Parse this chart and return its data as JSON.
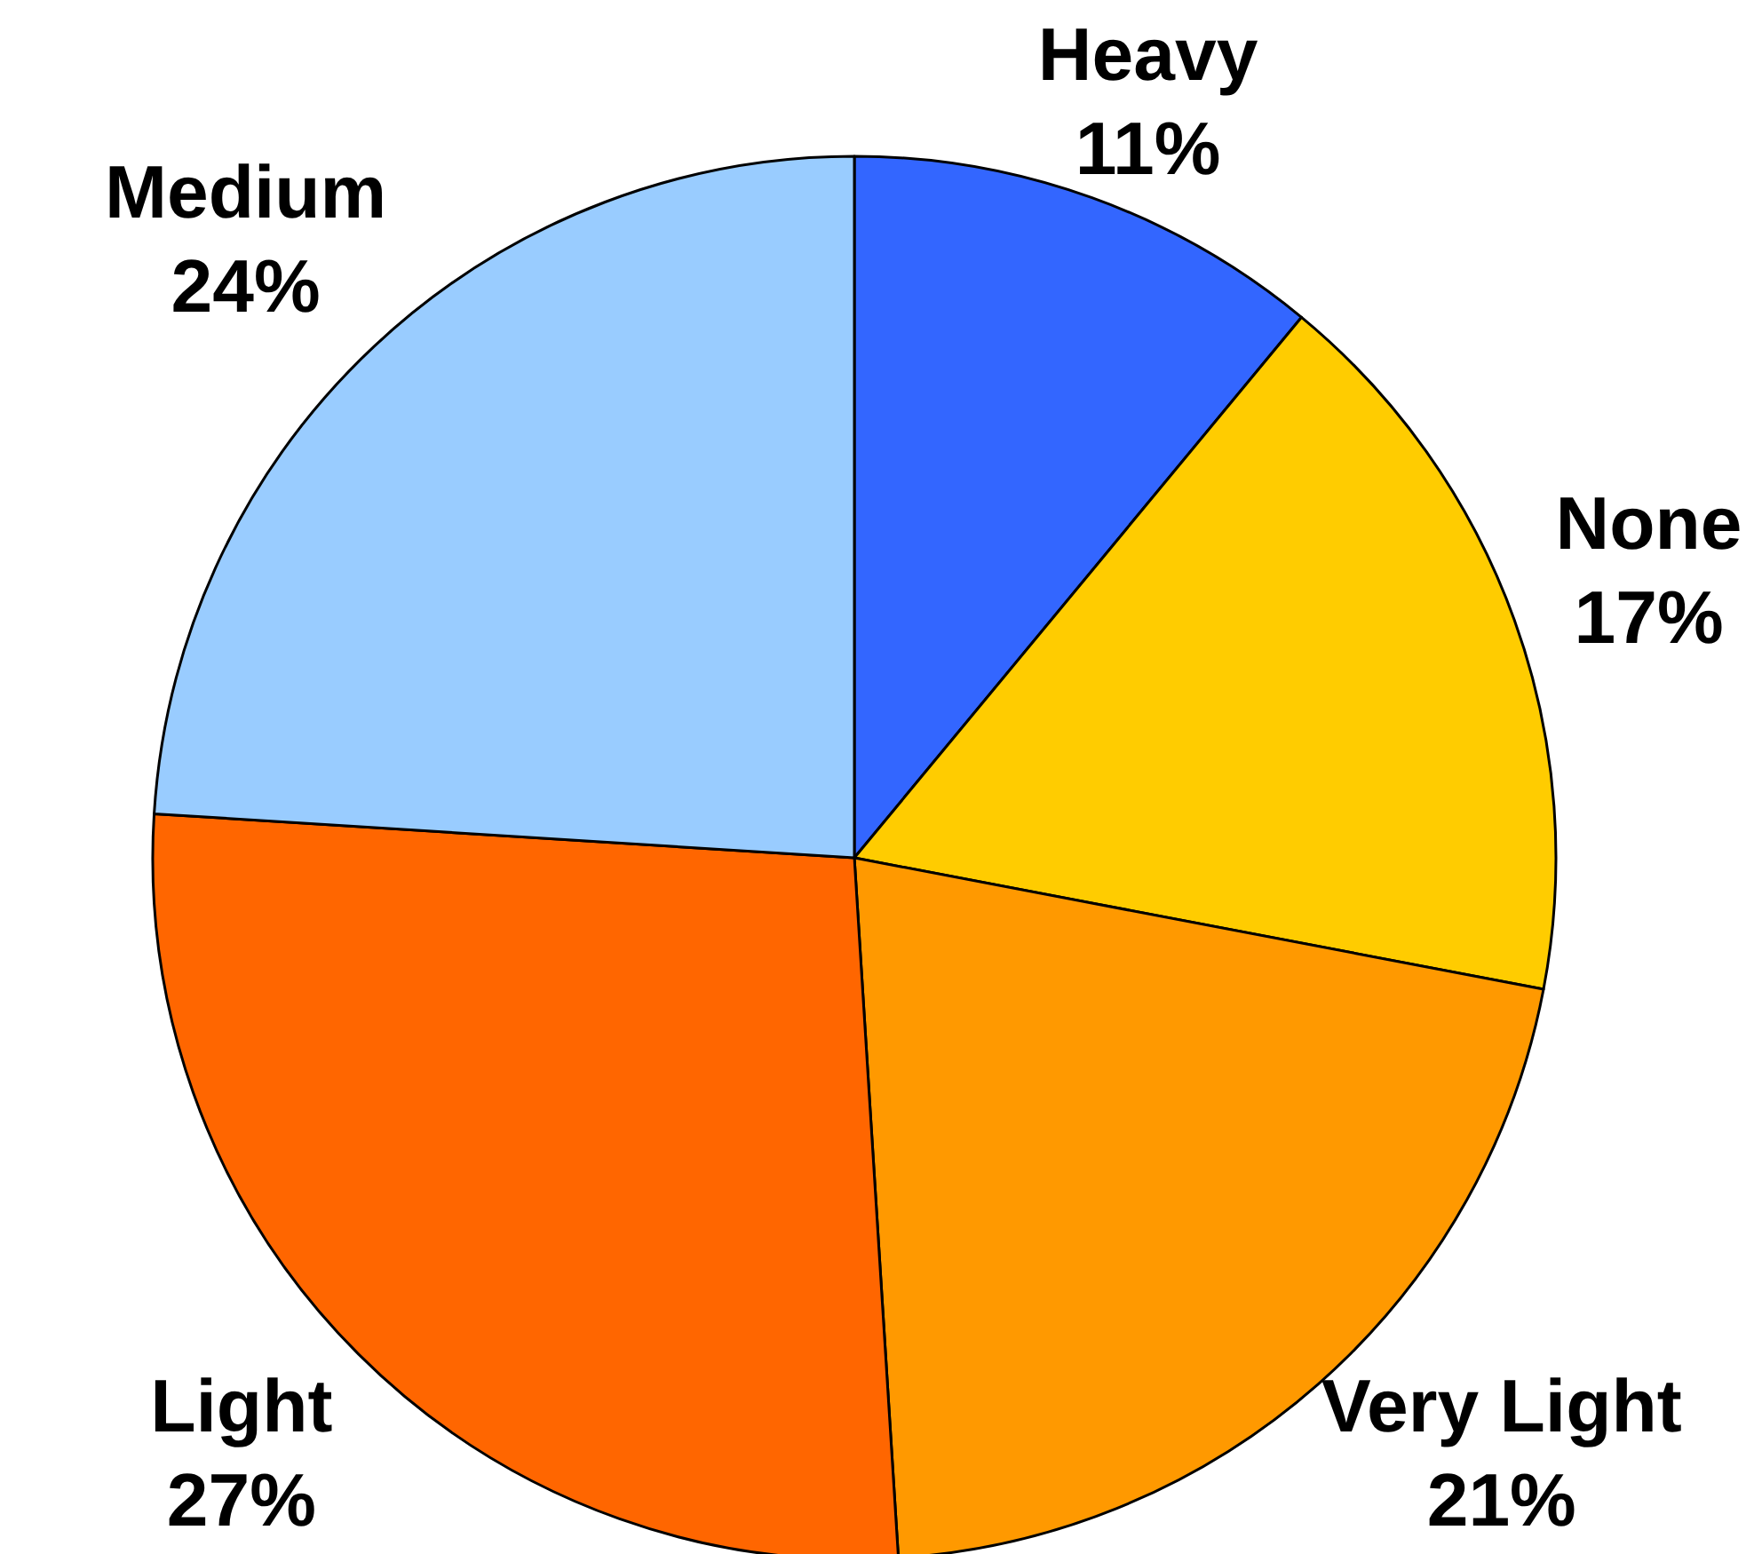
{
  "chart_data": {
    "type": "pie",
    "categories": [
      "Heavy",
      "None",
      "Very Light",
      "Light",
      "Medium"
    ],
    "values": [
      11,
      17,
      21,
      27,
      24
    ],
    "colors": [
      "#3366ff",
      "#ffcc00",
      "#ff9900",
      "#ff6600",
      "#99ccff"
    ],
    "value_labels": [
      "11%",
      "17%",
      "21%",
      "27%",
      "24%"
    ]
  }
}
